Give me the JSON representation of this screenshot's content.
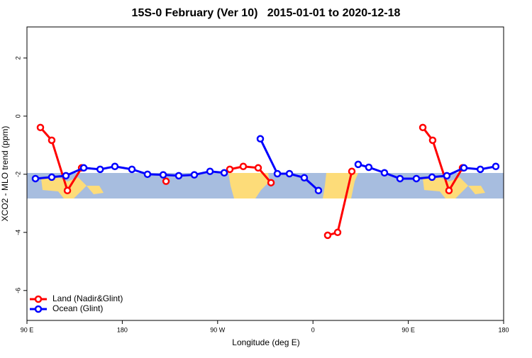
{
  "chart_data": {
    "type": "line",
    "title": "15S-0 February (Ver 10)   2015-01-01 to 2020-12-18",
    "x_label": "Longitude (deg E)",
    "y_label": "XCO2 - MLO trend (ppm)",
    "xlim": [
      90,
      540
    ],
    "ylim": [
      -7.03,
      3.07
    ],
    "xticks": [
      {
        "value": 90,
        "label": "90 E"
      },
      180,
      {
        "value": 270,
        "label": "90 W"
      },
      {
        "value": 360,
        "label": "0"
      },
      {
        "value": 450,
        "label": "90 E"
      },
      {
        "value": 540,
        "label": "180"
      }
    ],
    "yticks": [
      2,
      0,
      -2,
      -4,
      -6
    ],
    "legend": "bottom-left",
    "series": [
      {
        "name": "Land (Nadir&Glint)",
        "color": "#ff0000",
        "x": [
          102.7,
          113.4,
          128.2,
          141.6,
          null,
          221.3,
          null,
          281.5,
          294.2,
          308.3,
          320.4,
          null,
          373.9,
          383.3,
          396.7,
          null,
          463.7,
          473.0,
          488.4,
          501.2
        ],
        "values": [
          -0.39,
          -0.83,
          -2.56,
          -1.78,
          null,
          -2.24,
          null,
          -1.83,
          -1.73,
          -1.78,
          -2.29,
          null,
          -4.1,
          -4.0,
          -1.9,
          null,
          -0.39,
          -0.83,
          -2.56,
          -1.78
        ]
      },
      {
        "name": "Ocean (Glint)",
        "color": "#0000ff",
        "x": [
          98.0,
          113.4,
          126.8,
          143.6,
          159.1,
          173.0,
          189.1,
          203.8,
          218.6,
          233.3,
          248.0,
          262.8,
          276.2,
          null,
          310.3,
          326.4,
          337.8,
          351.8,
          365.2,
          null,
          402.7,
          412.7,
          427.5,
          442.2,
          457.6,
          472.4,
          486.4,
          502.5,
          518.0,
          532.6
        ],
        "values": [
          -2.15,
          -2.1,
          -2.05,
          -1.78,
          -1.83,
          -1.73,
          -1.83,
          -2.0,
          -2.02,
          -2.05,
          -2.02,
          -1.9,
          -1.95,
          null,
          -0.78,
          -1.98,
          -1.98,
          -2.12,
          -2.56,
          null,
          -1.66,
          -1.76,
          -1.95,
          -2.15,
          -2.15,
          -2.1,
          -2.05,
          -1.78,
          -1.83,
          -1.73
        ]
      }
    ]
  }
}
